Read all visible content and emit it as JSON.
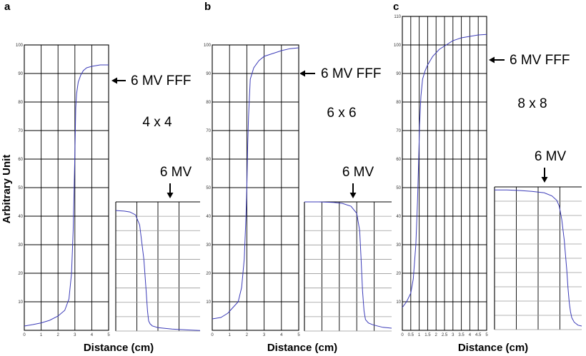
{
  "figure": {
    "ylabel": "Arbitrary Unit",
    "xlabel": "Distance (cm)"
  },
  "chart_data": [
    {
      "panel": "a",
      "type": "line",
      "field_label": "4 x 4",
      "fff_label": "6 MV FFF",
      "std_label": "6 MV",
      "xlabel": "Distance (cm)",
      "ylabel": "Arbitrary Unit",
      "xlim": [
        0,
        5
      ],
      "ylim": [
        0,
        100
      ],
      "xticks": [
        0,
        1,
        2,
        3,
        4,
        5
      ],
      "yticks": [
        10,
        20,
        30,
        40,
        50,
        60,
        70,
        80,
        90,
        100
      ],
      "grid": true,
      "fff": {
        "x": [
          0,
          0.5,
          1.0,
          1.5,
          2.0,
          2.4,
          2.65,
          2.8,
          2.9,
          2.95,
          3.0,
          3.05,
          3.1,
          3.2,
          3.35,
          3.5,
          3.7,
          4.0,
          4.5,
          5.0
        ],
        "y": [
          1.5,
          2.0,
          2.6,
          3.5,
          5.0,
          7.0,
          11.0,
          20.0,
          35.0,
          48.0,
          62.0,
          78.0,
          83.0,
          87.0,
          89.5,
          91.0,
          92.0,
          92.5,
          93.0,
          93.0
        ]
      },
      "std": {
        "x": [
          0,
          0.3,
          0.5,
          0.7,
          0.85,
          1.0,
          1.08,
          1.13,
          1.17,
          1.22,
          1.3,
          1.5,
          2.0,
          2.5,
          3.0
        ],
        "y": [
          42,
          41.8,
          41.5,
          40.5,
          37.0,
          25.0,
          14.0,
          7.0,
          3.5,
          2.5,
          1.8,
          1.2,
          0.7,
          0.4,
          0.2
        ],
        "xlim": [
          0,
          3
        ],
        "ylim": [
          0,
          45
        ]
      }
    },
    {
      "panel": "b",
      "type": "line",
      "field_label": "6 x 6",
      "fff_label": "6 MV FFF",
      "std_label": "6 MV",
      "xlabel": "Distance (cm)",
      "ylabel": "Arbitrary Unit",
      "xlim": [
        0,
        5
      ],
      "ylim": [
        0,
        100
      ],
      "xticks": [
        0,
        1,
        2,
        3,
        4,
        5
      ],
      "yticks": [
        10,
        20,
        30,
        40,
        50,
        60,
        70,
        80,
        90,
        100
      ],
      "grid": true,
      "fff": {
        "x": [
          0,
          0.5,
          0.9,
          1.2,
          1.5,
          1.7,
          1.85,
          1.95,
          2.0,
          2.05,
          2.1,
          2.2,
          2.4,
          2.7,
          3.0,
          3.5,
          4.0,
          4.5,
          5.0
        ],
        "y": [
          4.0,
          4.5,
          6.0,
          8.0,
          10.0,
          15.0,
          25.0,
          40.0,
          50.0,
          65.0,
          75.0,
          88.0,
          92.0,
          94.5,
          96.0,
          97.0,
          98.0,
          98.7,
          99.0
        ]
      },
      "std": {
        "x": [
          0,
          0.5,
          1.0,
          1.3,
          1.6,
          1.8,
          1.9,
          1.95,
          2.0,
          2.05,
          2.1,
          2.2,
          2.35,
          2.5,
          2.7,
          3.0
        ],
        "y": [
          45,
          45,
          44.8,
          44.5,
          43.5,
          41.0,
          35.0,
          25.0,
          14.0,
          7.0,
          4.0,
          2.8,
          2.2,
          1.8,
          1.3,
          1.0
        ],
        "xlim": [
          0,
          3
        ],
        "ylim": [
          0,
          45
        ]
      }
    },
    {
      "panel": "c",
      "type": "line",
      "field_label": "8 x 8",
      "fff_label": "6 MV FFF",
      "std_label": "6 MV",
      "xlabel": "Distance (cm)",
      "ylabel": "Arbitrary Unit",
      "xlim": [
        0,
        5
      ],
      "ylim": [
        0,
        110
      ],
      "xticks": [
        0,
        0.5,
        1,
        1.5,
        2,
        2.5,
        3,
        3.5,
        4,
        4.5,
        5
      ],
      "yticks": [
        10,
        20,
        30,
        40,
        50,
        60,
        70,
        80,
        90,
        100,
        110
      ],
      "grid": true,
      "fff": {
        "x": [
          0,
          0.25,
          0.5,
          0.65,
          0.8,
          0.9,
          0.97,
          1.02,
          1.1,
          1.2,
          1.35,
          1.5,
          1.8,
          2.2,
          2.6,
          3.0,
          3.5,
          4.0,
          4.5,
          5.0
        ],
        "y": [
          8.0,
          10.0,
          13.0,
          18.0,
          30.0,
          45.0,
          60.0,
          72.0,
          82.0,
          88.0,
          91.0,
          93.0,
          96.0,
          98.5,
          100.0,
          101.5,
          102.5,
          103.0,
          103.5,
          103.7
        ]
      },
      "std": {
        "x": [
          0,
          0.5,
          1.0,
          1.5,
          2.0,
          2.3,
          2.5,
          2.6,
          2.7,
          2.8,
          2.9,
          2.95,
          3.0,
          3.05,
          3.1,
          3.2,
          3.35,
          3.5
        ],
        "y": [
          47.0,
          47.0,
          46.8,
          46.5,
          46.0,
          45.0,
          43.5,
          41.5,
          37.0,
          30.0,
          20.0,
          14.0,
          9.0,
          6.0,
          4.0,
          2.5,
          1.5,
          1.2
        ],
        "xlim": [
          0,
          3.5
        ],
        "ylim": [
          0,
          48
        ]
      }
    }
  ]
}
